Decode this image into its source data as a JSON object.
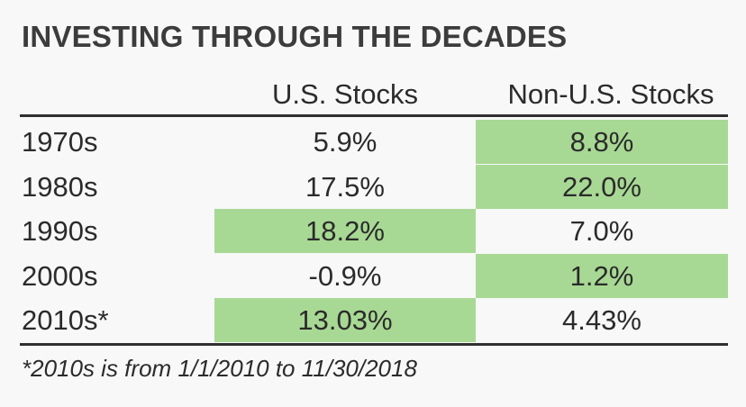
{
  "colors": {
    "highlight": "#a8d994",
    "background": "#f7f8f7",
    "text": "#2b2b2b"
  },
  "chart_data": {
    "type": "table",
    "title": "INVESTING THROUGH THE DECADES",
    "columns": [
      "U.S. Stocks",
      "Non-U.S. Stocks"
    ],
    "rows": [
      {
        "label": "1970s",
        "us": "5.9%",
        "nonus": "8.8%",
        "winner": "nonus"
      },
      {
        "label": "1980s",
        "us": "17.5%",
        "nonus": "22.0%",
        "winner": "nonus"
      },
      {
        "label": "1990s",
        "us": "18.2%",
        "nonus": "7.0%",
        "winner": "us"
      },
      {
        "label": "2000s",
        "us": "-0.9%",
        "nonus": "1.2%",
        "winner": "nonus"
      },
      {
        "label": "2010s*",
        "us": "13.03%",
        "nonus": "4.43%",
        "winner": "us"
      }
    ],
    "footnote": "*2010s is from 1/1/2010 to 11/30/2018"
  }
}
